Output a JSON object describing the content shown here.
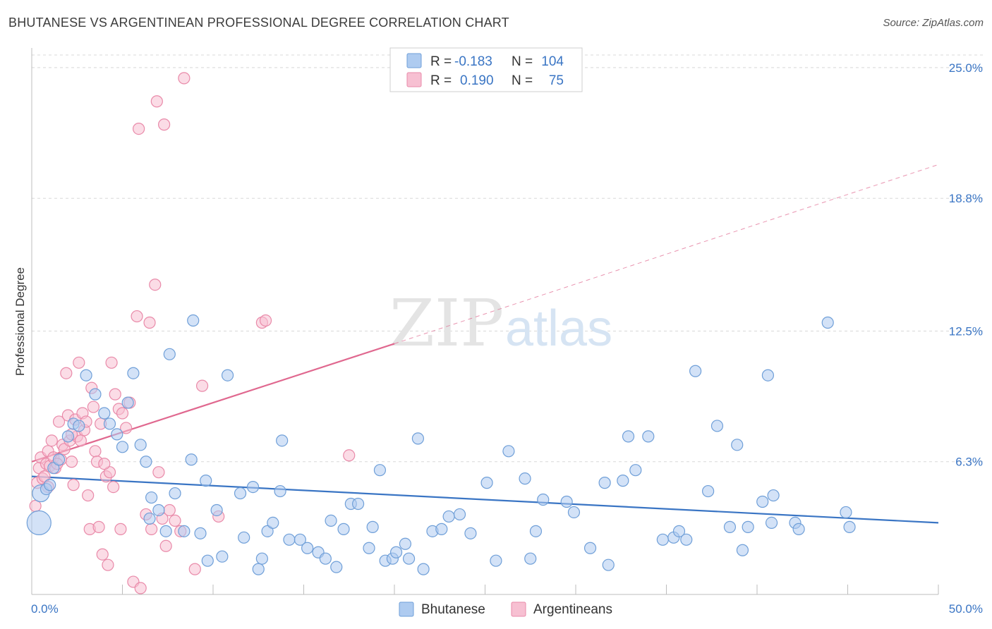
{
  "title": "BHUTANESE VS ARGENTINEAN PROFESSIONAL DEGREE CORRELATION CHART",
  "source": "Source: ZipAtlas.com",
  "colors": {
    "blue_fill": "#aecbf0",
    "blue_stroke": "#6f9fd8",
    "blue_line": "#3a75c4",
    "pink_fill": "#f7c0d2",
    "pink_stroke": "#e98aa9",
    "pink_line": "#e0688f",
    "axis_label": "#3a75c4",
    "grid": "#d8d8d8"
  },
  "legend": {
    "rows": [
      {
        "r_label": "R =",
        "r_value": "-0.183",
        "n_label": "N =",
        "n_value": "104"
      },
      {
        "r_label": "R =",
        "r_value": "0.190",
        "n_label": "N =",
        "n_value": "75"
      }
    ]
  },
  "watermark": {
    "zip": "ZIP",
    "atlas": "atlas"
  },
  "chart_data": {
    "type": "scatter",
    "title": "BHUTANESE VS ARGENTINEAN PROFESSIONAL DEGREE CORRELATION CHART",
    "xlabel": "",
    "ylabel": "Professional Degree",
    "xlim": [
      0,
      50
    ],
    "ylim": [
      0,
      25.6
    ],
    "x_tick_labels": [
      "0.0%",
      "50.0%"
    ],
    "y_ticks": [
      6.3,
      12.5,
      18.8,
      25.0
    ],
    "y_tick_labels": [
      "6.3%",
      "12.5%",
      "18.8%",
      "25.0%"
    ],
    "grid": true,
    "legend_position": "top-center",
    "series": [
      {
        "name": "Bhutanese",
        "color": "#aecbf0",
        "R": -0.183,
        "N": 104,
        "trend": {
          "x": [
            0,
            50
          ],
          "y": [
            5.6,
            3.4
          ]
        },
        "points": [
          [
            0.4,
            3.4
          ],
          [
            0.5,
            4.8
          ],
          [
            0.8,
            5.0
          ],
          [
            1.0,
            5.2
          ],
          [
            1.2,
            6.0
          ],
          [
            1.5,
            6.4
          ],
          [
            2.0,
            7.5
          ],
          [
            2.3,
            8.1
          ],
          [
            2.6,
            8.0
          ],
          [
            3.0,
            10.4
          ],
          [
            3.5,
            9.5
          ],
          [
            4.0,
            8.6
          ],
          [
            4.3,
            8.1
          ],
          [
            4.7,
            7.6
          ],
          [
            5.0,
            7.0
          ],
          [
            5.3,
            9.1
          ],
          [
            5.6,
            10.5
          ],
          [
            6.0,
            7.1
          ],
          [
            6.3,
            6.3
          ],
          [
            6.6,
            4.6
          ],
          [
            6.5,
            3.6
          ],
          [
            7.0,
            4.0
          ],
          [
            7.4,
            3.0
          ],
          [
            7.6,
            11.4
          ],
          [
            7.9,
            4.8
          ],
          [
            8.4,
            3.0
          ],
          [
            8.8,
            6.4
          ],
          [
            8.9,
            13.0
          ],
          [
            9.3,
            2.9
          ],
          [
            9.6,
            5.4
          ],
          [
            9.7,
            1.6
          ],
          [
            10.2,
            4.0
          ],
          [
            10.5,
            1.8
          ],
          [
            10.8,
            10.4
          ],
          [
            11.5,
            4.8
          ],
          [
            11.7,
            2.7
          ],
          [
            12.2,
            5.1
          ],
          [
            12.5,
            1.2
          ],
          [
            12.7,
            1.7
          ],
          [
            13.0,
            3.0
          ],
          [
            13.3,
            3.4
          ],
          [
            13.7,
            4.9
          ],
          [
            13.8,
            7.3
          ],
          [
            14.2,
            2.6
          ],
          [
            14.8,
            2.6
          ],
          [
            15.2,
            2.2
          ],
          [
            15.8,
            2.0
          ],
          [
            16.2,
            1.7
          ],
          [
            16.5,
            3.5
          ],
          [
            16.8,
            1.3
          ],
          [
            17.2,
            3.1
          ],
          [
            17.6,
            4.3
          ],
          [
            18.0,
            4.3
          ],
          [
            18.6,
            2.2
          ],
          [
            18.8,
            3.2
          ],
          [
            19.2,
            5.9
          ],
          [
            19.5,
            1.6
          ],
          [
            19.9,
            1.7
          ],
          [
            20.1,
            2.0
          ],
          [
            20.6,
            2.4
          ],
          [
            20.8,
            1.7
          ],
          [
            21.3,
            7.4
          ],
          [
            21.6,
            1.2
          ],
          [
            22.1,
            3.0
          ],
          [
            22.6,
            3.1
          ],
          [
            23.0,
            3.7
          ],
          [
            23.6,
            3.8
          ],
          [
            24.2,
            2.9
          ],
          [
            25.1,
            5.3
          ],
          [
            25.6,
            1.6
          ],
          [
            26.3,
            6.8
          ],
          [
            27.2,
            5.5
          ],
          [
            27.5,
            1.7
          ],
          [
            27.8,
            3.0
          ],
          [
            28.2,
            4.5
          ],
          [
            29.5,
            4.4
          ],
          [
            29.9,
            3.9
          ],
          [
            30.8,
            2.2
          ],
          [
            31.6,
            5.3
          ],
          [
            31.8,
            1.4
          ],
          [
            32.6,
            5.4
          ],
          [
            32.9,
            7.5
          ],
          [
            33.3,
            5.9
          ],
          [
            34.0,
            7.5
          ],
          [
            34.8,
            2.6
          ],
          [
            35.4,
            2.7
          ],
          [
            35.7,
            3.0
          ],
          [
            36.1,
            2.6
          ],
          [
            36.6,
            10.6
          ],
          [
            37.3,
            4.9
          ],
          [
            37.8,
            8.0
          ],
          [
            38.5,
            3.2
          ],
          [
            38.9,
            7.1
          ],
          [
            39.2,
            2.1
          ],
          [
            39.5,
            3.2
          ],
          [
            40.3,
            4.4
          ],
          [
            40.6,
            10.4
          ],
          [
            40.8,
            3.4
          ],
          [
            40.9,
            4.7
          ],
          [
            42.1,
            3.4
          ],
          [
            42.3,
            3.1
          ],
          [
            43.9,
            12.9
          ],
          [
            44.9,
            3.9
          ],
          [
            45.1,
            3.2
          ]
        ]
      },
      {
        "name": "Argentineans",
        "color": "#f7c0d2",
        "R": 0.19,
        "N": 75,
        "trend": {
          "x": [
            0,
            20.0
          ],
          "y": [
            6.3,
            11.9
          ]
        },
        "trend_dashed": {
          "x": [
            20.0,
            50
          ],
          "y": [
            11.9,
            20.4
          ]
        },
        "points": [
          [
            0.2,
            4.2
          ],
          [
            0.3,
            5.3
          ],
          [
            0.4,
            6.0
          ],
          [
            0.5,
            6.5
          ],
          [
            0.6,
            5.5
          ],
          [
            0.7,
            5.6
          ],
          [
            0.8,
            6.2
          ],
          [
            0.9,
            6.8
          ],
          [
            1.0,
            6.1
          ],
          [
            1.1,
            7.3
          ],
          [
            1.2,
            6.5
          ],
          [
            1.3,
            6.0
          ],
          [
            1.5,
            8.2
          ],
          [
            1.6,
            6.4
          ],
          [
            1.7,
            7.1
          ],
          [
            1.8,
            6.9
          ],
          [
            1.9,
            10.5
          ],
          [
            2.0,
            8.5
          ],
          [
            2.1,
            7.3
          ],
          [
            2.2,
            6.3
          ],
          [
            2.3,
            5.2
          ],
          [
            2.4,
            8.3
          ],
          [
            2.5,
            7.5
          ],
          [
            2.6,
            11.0
          ],
          [
            2.7,
            7.3
          ],
          [
            2.8,
            8.6
          ],
          [
            2.9,
            7.8
          ],
          [
            3.0,
            8.2
          ],
          [
            3.1,
            4.7
          ],
          [
            3.2,
            3.1
          ],
          [
            3.3,
            9.8
          ],
          [
            3.5,
            6.8
          ],
          [
            3.6,
            6.3
          ],
          [
            3.7,
            3.2
          ],
          [
            3.8,
            8.1
          ],
          [
            3.9,
            1.9
          ],
          [
            4.1,
            5.6
          ],
          [
            4.2,
            1.4
          ],
          [
            4.3,
            5.8
          ],
          [
            4.4,
            11.0
          ],
          [
            4.5,
            5.1
          ],
          [
            4.6,
            9.5
          ],
          [
            4.8,
            8.8
          ],
          [
            4.9,
            3.1
          ],
          [
            5.2,
            7.9
          ],
          [
            5.4,
            9.1
          ],
          [
            5.6,
            0.6
          ],
          [
            5.8,
            13.2
          ],
          [
            5.9,
            22.1
          ],
          [
            6.0,
            0.3
          ],
          [
            6.3,
            3.8
          ],
          [
            6.5,
            12.9
          ],
          [
            6.6,
            3.1
          ],
          [
            6.8,
            14.7
          ],
          [
            6.9,
            23.4
          ],
          [
            7.0,
            5.8
          ],
          [
            7.2,
            3.6
          ],
          [
            7.3,
            22.3
          ],
          [
            7.4,
            2.3
          ],
          [
            7.6,
            4.0
          ],
          [
            7.9,
            3.5
          ],
          [
            8.2,
            3.0
          ],
          [
            8.4,
            24.5
          ],
          [
            9.0,
            1.2
          ],
          [
            9.4,
            9.9
          ],
          [
            10.3,
            3.7
          ],
          [
            12.7,
            12.9
          ],
          [
            12.9,
            13.0
          ],
          [
            17.5,
            6.6
          ],
          [
            4.0,
            6.2
          ],
          [
            3.4,
            8.9
          ],
          [
            2.2,
            7.6
          ],
          [
            1.4,
            6.2
          ],
          [
            0.9,
            5.1
          ],
          [
            5.0,
            8.6
          ]
        ]
      }
    ]
  }
}
